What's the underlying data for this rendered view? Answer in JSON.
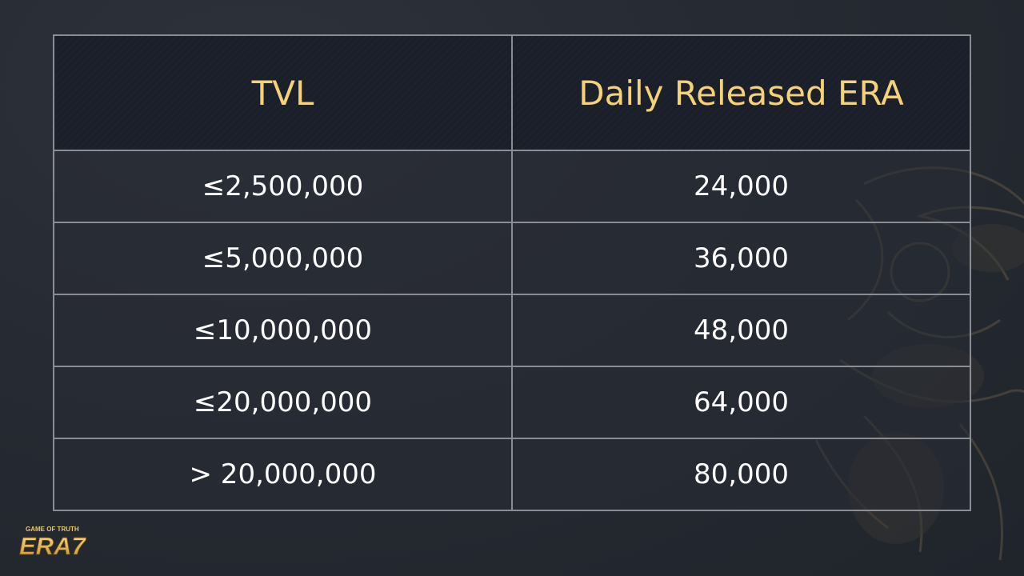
{
  "table": {
    "headers": [
      "TVL",
      "Daily Released ERA"
    ],
    "rows": [
      [
        "≤2,500,000",
        "24,000"
      ],
      [
        "≤5,000,000",
        "36,000"
      ],
      [
        "≤10,000,000",
        "48,000"
      ],
      [
        "≤20,000,000",
        "64,000"
      ],
      [
        "> 20,000,000",
        "80,000"
      ]
    ]
  },
  "logo": {
    "tagline": "GAME OF TRUTH",
    "wordmark": "ERA7"
  },
  "colors": {
    "header_text": "#f3d27a",
    "body_text": "#ffffff",
    "border": "#8a8d93",
    "background": "#262a32",
    "logo_gold": "#e8b84a"
  }
}
